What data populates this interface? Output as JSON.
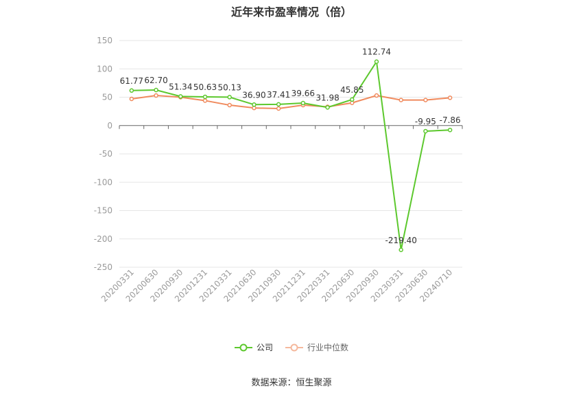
{
  "chart_data": {
    "type": "line",
    "title": "近年来市盈率情况（倍）",
    "categories": [
      "20200331",
      "20200630",
      "20200930",
      "20201231",
      "20210331",
      "20210630",
      "20210930",
      "20211231",
      "20220331",
      "20220630",
      "20220930",
      "20230331",
      "20230630",
      "20240710"
    ],
    "series": [
      {
        "name": "公司",
        "color": "#5cc82d",
        "values": [
          61.77,
          62.7,
          51.34,
          50.63,
          50.13,
          36.9,
          37.41,
          39.66,
          31.98,
          45.85,
          112.74,
          -219.4,
          -9.95,
          -7.86
        ],
        "labels": [
          "61.77",
          "62.70",
          "51.34",
          "50.63",
          "50.13",
          "36.90",
          "37.41",
          "39.66",
          "31.98",
          "45.85",
          "112.74",
          "-219.40",
          "-9.95",
          "-7.86"
        ]
      },
      {
        "name": "行业中位数",
        "color": "#f08a5d",
        "values": [
          47,
          53,
          50,
          44,
          36,
          31,
          30,
          36,
          33,
          40,
          53,
          45,
          45,
          49
        ]
      }
    ],
    "yticks": [
      "150",
      "100",
      "50",
      "0",
      "-50",
      "-100",
      "-150",
      "-200",
      "-250"
    ],
    "ylim": [
      -250,
      150
    ],
    "grid": true,
    "legend_position": "bottom"
  },
  "source": "数据来源：恒生聚源"
}
